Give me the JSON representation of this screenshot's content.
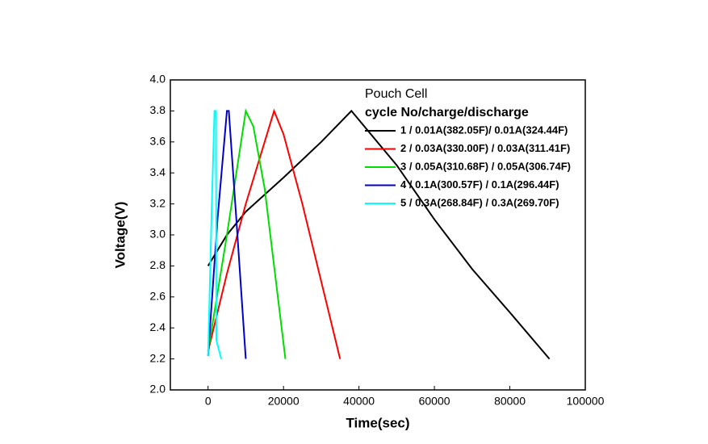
{
  "chart_data": {
    "type": "line",
    "legend_title": "Pouch Cell",
    "legend_subtitle": "cycle No/charge/discharge",
    "xlabel": "Time(sec)",
    "ylabel": "Voltage(V)",
    "xlim": [
      -10000,
      100000
    ],
    "ylim": [
      2.0,
      4.0
    ],
    "xticks": [
      0,
      20000,
      40000,
      60000,
      80000,
      100000
    ],
    "yticks": [
      {
        "value": 2,
        "label": "2.0"
      },
      {
        "value": 2.2,
        "label": "2.2"
      },
      {
        "value": 2.4,
        "label": "2.4"
      },
      {
        "value": 2.6,
        "label": "2.6"
      },
      {
        "value": 2.8,
        "label": "2.8"
      },
      {
        "value": 3,
        "label": "3.0"
      },
      {
        "value": 3.2,
        "label": "3.2"
      },
      {
        "value": 3.4,
        "label": "3.4"
      },
      {
        "value": 3.6,
        "label": "3.6"
      },
      {
        "value": 3.8,
        "label": "3.8"
      },
      {
        "value": 4,
        "label": "4.0"
      }
    ],
    "legend": "upper right",
    "series": [
      {
        "name": "1 / 0.01A(382.05F)/ 0.01A(324.44F)",
        "color": "#000000",
        "x": [
          0,
          5000,
          10000,
          20000,
          30000,
          38000,
          50000,
          60000,
          70000,
          80000,
          90500
        ],
        "values": [
          2.8,
          3.0,
          3.15,
          3.37,
          3.6,
          3.8,
          3.45,
          3.1,
          2.78,
          2.5,
          2.2
        ]
      },
      {
        "name": "2 / 0.03A(330.00F) / 0.03A(311.41F)",
        "color": "#ff0000",
        "x": [
          0,
          5000,
          10000,
          15000,
          17500,
          20000,
          25000,
          30000,
          35000
        ],
        "values": [
          2.25,
          2.75,
          3.2,
          3.6,
          3.8,
          3.65,
          3.2,
          2.7,
          2.2
        ]
      },
      {
        "name": "3 / 0.05A(310.68F) / 0.05A(306.74F)",
        "color": "#00dd00",
        "x": [
          0,
          5000,
          10000,
          12000,
          15000,
          20500
        ],
        "values": [
          2.25,
          3.0,
          3.8,
          3.7,
          3.3,
          2.2
        ]
      },
      {
        "name": "4 / 0.1A(300.57F) / 0.1A(296.44F)",
        "color": "#0000cc",
        "x": [
          0,
          2500,
          5000,
          5500,
          7500,
          10000
        ],
        "values": [
          2.22,
          3.1,
          3.8,
          3.8,
          3.1,
          2.2
        ]
      },
      {
        "name": "5 / 0.3A(268.84F) / 0.3A(269.70F)",
        "color": "#00ffff",
        "x": [
          0,
          1000,
          1700,
          2100,
          2200,
          3500
        ],
        "values": [
          2.22,
          3.2,
          3.8,
          3.8,
          2.32,
          2.2
        ]
      }
    ]
  }
}
